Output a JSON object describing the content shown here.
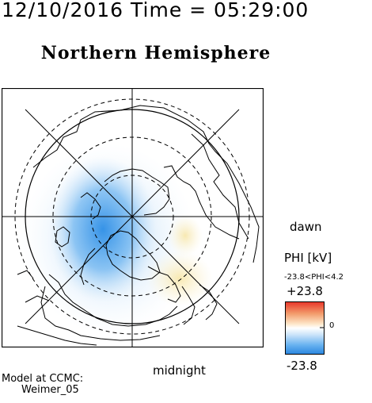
{
  "header": {
    "datetime": "12/10/2016 Time = 05:29:00",
    "title": "Northern Hemisphere"
  },
  "map": {
    "labels": {
      "dawn": "dawn",
      "midnight": "midnight"
    }
  },
  "legend": {
    "quantity": "PHI [kV]",
    "range": "-23.8<PHI<4.2",
    "max": "+23.8",
    "zero": "0",
    "min": "-23.8",
    "colors": {
      "negative": "#3a8fe8",
      "neutral": "#ffffff",
      "positive": "#e83a2a"
    }
  },
  "footer": {
    "model_line1": "Model at CCMC:",
    "model_line2": "Weimer_05"
  }
}
